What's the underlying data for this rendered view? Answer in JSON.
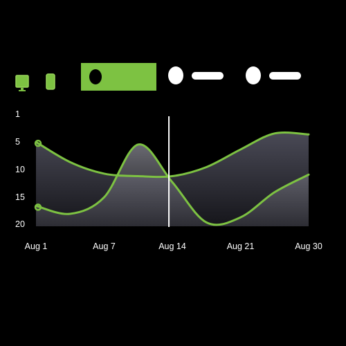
{
  "toolbar": {
    "device_icons": [
      {
        "name": "desktop-icon",
        "active": true
      },
      {
        "name": "mobile-icon",
        "active": false
      }
    ],
    "accent_color": "#7dc242",
    "legend_chips": [
      {
        "state": "selected",
        "color": "#7dc242"
      },
      {
        "state": "unselected",
        "color": "#ffffff"
      },
      {
        "state": "unselected",
        "color": "#ffffff"
      }
    ]
  },
  "chart_data": {
    "type": "line",
    "x_categories": [
      "Aug 1",
      "Aug 7",
      "Aug 14",
      "Aug 21",
      "Aug 30"
    ],
    "y_ticks": [
      1,
      5,
      10,
      15,
      20
    ],
    "ylim": [
      1,
      20
    ],
    "y_inverted": true,
    "grid": false,
    "series_color": "#7dc242",
    "series": [
      {
        "x": [
          0,
          0.5,
          1,
          1.5,
          2,
          2.5,
          3,
          3.5,
          4
        ],
        "values": [
          3.5,
          7.5,
          9.8,
          10.3,
          10.3,
          8.5,
          5.0,
          1.8,
          2.0
        ]
      },
      {
        "x": [
          0,
          0.5,
          1,
          1.5,
          2,
          2.5,
          3,
          3.5,
          4
        ],
        "values": [
          16.2,
          17.8,
          14.5,
          4.0,
          11.5,
          19.5,
          18.5,
          13.5,
          10.0
        ]
      }
    ],
    "markers": [
      {
        "series": 0,
        "x": 0
      },
      {
        "series": 1,
        "x": 0
      }
    ],
    "cursor_x": 1.95
  }
}
